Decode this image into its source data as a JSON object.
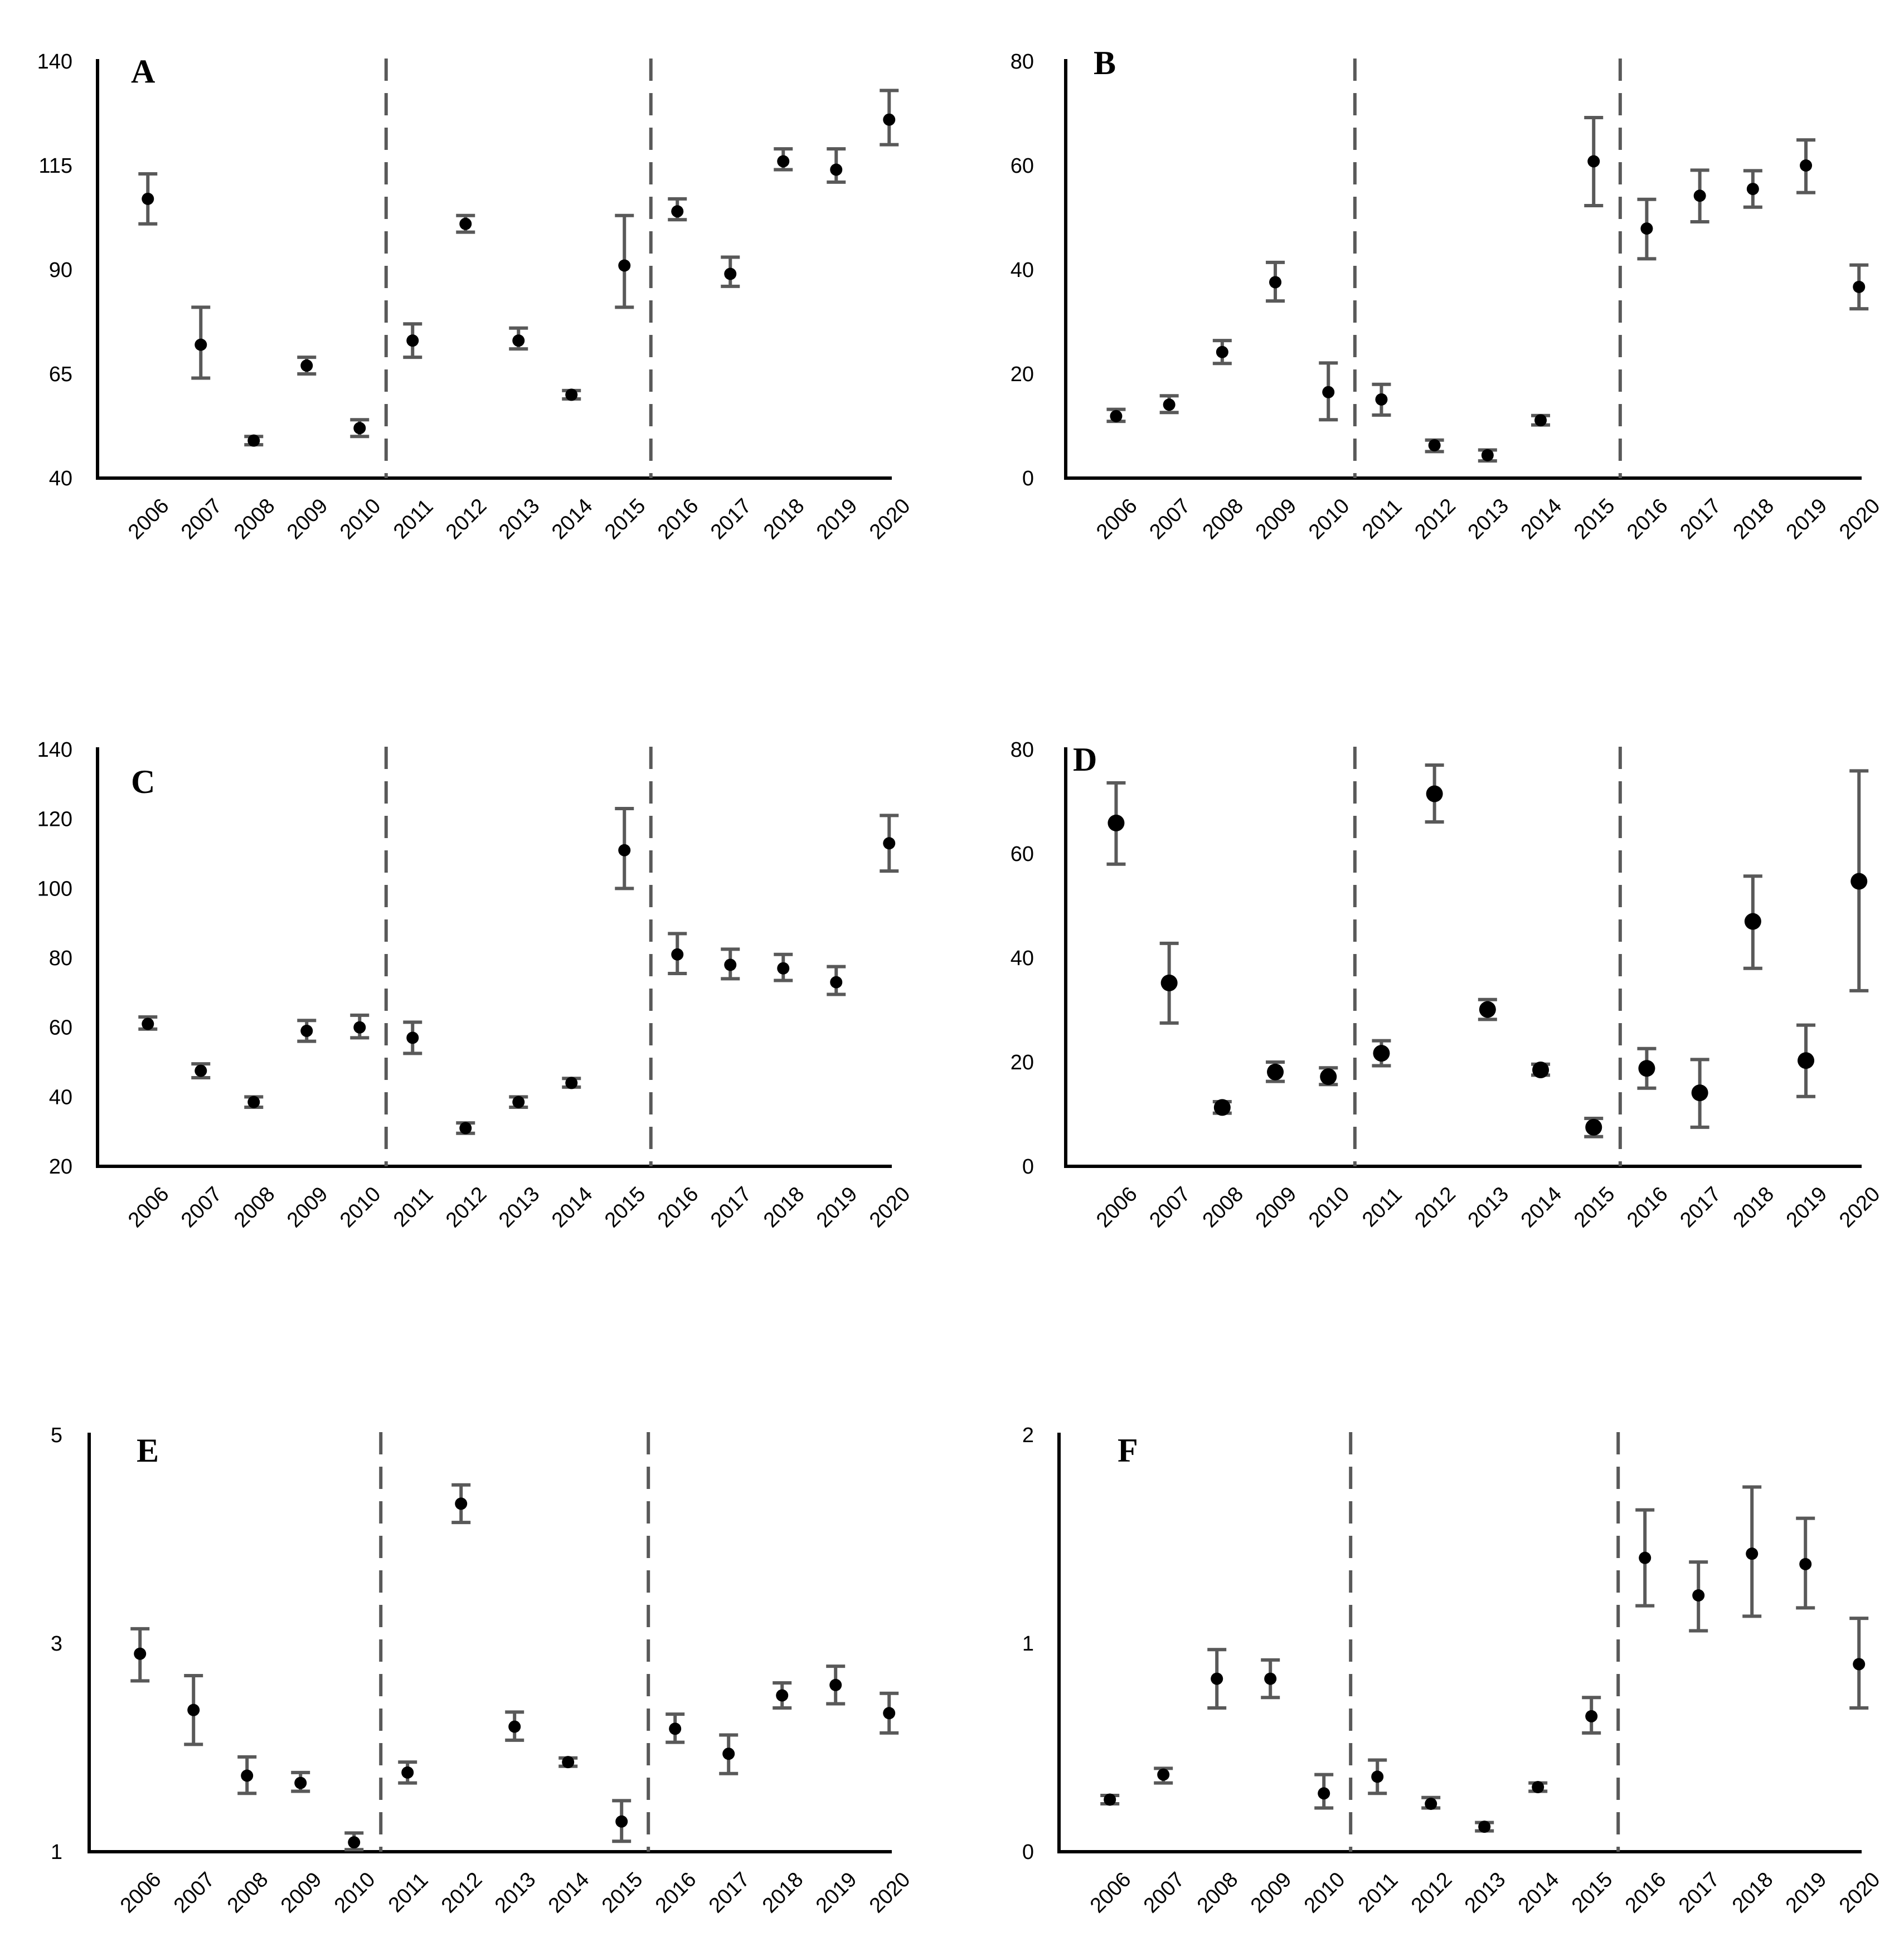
{
  "chart_data": [
    {
      "type": "scatter",
      "panel": "A",
      "x": [
        "2006",
        "2007",
        "2008",
        "2009",
        "2010",
        "2011",
        "2012",
        "2013",
        "2014",
        "2015",
        "2016",
        "2017",
        "2018",
        "2019",
        "2020"
      ],
      "y": [
        107,
        72,
        49,
        67,
        52,
        73,
        101,
        73,
        60,
        91,
        104,
        89,
        116,
        114,
        126
      ],
      "err_low": [
        101,
        64,
        48,
        65,
        50,
        69,
        99,
        71,
        59,
        81,
        102,
        86,
        114,
        111,
        120
      ],
      "err_high": [
        113,
        81,
        50,
        69,
        54,
        77,
        103,
        76,
        61,
        103,
        107,
        93,
        119,
        119,
        133
      ],
      "ylim": [
        40,
        140
      ],
      "yticks": [
        "40",
        "65",
        "90",
        "115",
        "140"
      ],
      "dividers_after": [
        "2010",
        "2015"
      ],
      "grid": false
    },
    {
      "type": "scatter",
      "panel": "B",
      "x": [
        "2006",
        "2007",
        "2008",
        "2009",
        "2010",
        "2011",
        "2012",
        "2013",
        "2014",
        "2015",
        "2016",
        "2017",
        "2018",
        "2019",
        "2020"
      ],
      "y": [
        11.9,
        14.1,
        24.2,
        37.6,
        16.5,
        15.1,
        6.3,
        4.4,
        11.1,
        60.8,
        47.9,
        54.2,
        55.5,
        60.0,
        36.7
      ],
      "err_low": [
        10.9,
        12.6,
        22.0,
        34.0,
        11.2,
        12.1,
        5.1,
        3.3,
        10.2,
        52.3,
        42.1,
        49.2,
        52.0,
        54.8,
        32.5
      ],
      "err_high": [
        13.2,
        15.8,
        26.4,
        41.4,
        22.1,
        18.0,
        7.3,
        5.4,
        12.0,
        69.2,
        53.5,
        59.1,
        59.0,
        64.9,
        40.9
      ],
      "ylim": [
        0,
        80
      ],
      "yticks": [
        "0",
        "20",
        "40",
        "60",
        "80"
      ],
      "dividers_after": [
        "2010",
        "2015"
      ],
      "grid": false
    },
    {
      "type": "scatter",
      "panel": "C",
      "x": [
        "2006",
        "2007",
        "2008",
        "2009",
        "2010",
        "2011",
        "2012",
        "2013",
        "2014",
        "2015",
        "2016",
        "2017",
        "2018",
        "2019",
        "2020"
      ],
      "y": [
        61,
        47.5,
        38.5,
        59,
        60,
        57,
        31,
        38.5,
        44,
        111,
        81,
        78,
        77,
        73,
        113
      ],
      "err_low": [
        59.5,
        45.5,
        37,
        56,
        57,
        52.5,
        29.5,
        37,
        42.8,
        100,
        75.5,
        74,
        73.5,
        69.5,
        105
      ],
      "err_high": [
        63,
        49.5,
        40,
        62,
        63.5,
        61.5,
        32.5,
        40,
        45.3,
        123,
        87,
        82.5,
        81,
        77.5,
        121
      ],
      "ylim": [
        20,
        140
      ],
      "yticks": [
        "20",
        "40",
        "60",
        "80",
        "100",
        "120",
        "140"
      ],
      "dividers_after": [
        "2010",
        "2015"
      ],
      "grid": false
    },
    {
      "type": "scatter",
      "panel": "D",
      "x": [
        "2006",
        "2007",
        "2008",
        "2009",
        "2010",
        "2011",
        "2012",
        "2013",
        "2014",
        "2015",
        "2016",
        "2017",
        "2018",
        "2019",
        "2020"
      ],
      "y": [
        65.9,
        35.2,
        11.3,
        18.1,
        17.2,
        21.7,
        71.5,
        30.1,
        18.5,
        7.5,
        18.8,
        14.1,
        47.0,
        20.3,
        54.7
      ],
      "err_low": [
        58.0,
        27.5,
        10.2,
        16.3,
        15.7,
        19.3,
        66.1,
        28.2,
        17.5,
        5.7,
        15.0,
        7.5,
        38.0,
        13.4,
        33.7
      ],
      "err_high": [
        73.6,
        42.8,
        12.4,
        20.0,
        18.9,
        24.1,
        77.0,
        32.0,
        19.6,
        9.2,
        22.6,
        20.5,
        55.7,
        27.1,
        75.9
      ],
      "ylim": [
        0,
        80
      ],
      "yticks": [
        "0",
        "20",
        "40",
        "60",
        "80"
      ],
      "dividers_after": [
        "2010",
        "2015"
      ],
      "grid": false
    },
    {
      "type": "scatter",
      "panel": "E",
      "x": [
        "2006",
        "2007",
        "2008",
        "2009",
        "2010",
        "2011",
        "2012",
        "2013",
        "2014",
        "2015",
        "2016",
        "2017",
        "2018",
        "2019",
        "2020"
      ],
      "y": [
        2.9,
        2.36,
        1.73,
        1.66,
        1.09,
        1.76,
        4.34,
        2.2,
        1.86,
        1.29,
        2.18,
        1.94,
        2.5,
        2.6,
        2.33
      ],
      "err_low": [
        2.64,
        2.03,
        1.56,
        1.58,
        1.02,
        1.66,
        4.16,
        2.07,
        1.82,
        1.1,
        2.05,
        1.75,
        2.38,
        2.42,
        2.14
      ],
      "err_high": [
        3.14,
        2.69,
        1.91,
        1.76,
        1.18,
        1.86,
        4.52,
        2.34,
        1.9,
        1.49,
        2.32,
        2.12,
        2.62,
        2.78,
        2.52
      ],
      "ylim": [
        1,
        5
      ],
      "yticks": [
        "1",
        "3",
        "5"
      ],
      "dividers_after": [
        "2010",
        "2015"
      ],
      "grid": false
    },
    {
      "type": "scatter",
      "panel": "F",
      "x": [
        "2006",
        "2007",
        "2008",
        "2009",
        "2010",
        "2011",
        "2012",
        "2013",
        "2014",
        "2015",
        "2016",
        "2017",
        "2018",
        "2019",
        "2020"
      ],
      "y": [
        0.25,
        0.37,
        0.83,
        0.83,
        0.28,
        0.36,
        0.23,
        0.12,
        0.31,
        0.65,
        1.41,
        1.23,
        1.43,
        1.38,
        0.9
      ],
      "err_low": [
        0.23,
        0.33,
        0.69,
        0.74,
        0.21,
        0.28,
        0.21,
        0.1,
        0.29,
        0.57,
        1.18,
        1.06,
        1.13,
        1.17,
        0.69
      ],
      "err_high": [
        0.27,
        0.4,
        0.97,
        0.92,
        0.37,
        0.44,
        0.26,
        0.14,
        0.33,
        0.74,
        1.64,
        1.39,
        1.75,
        1.6,
        1.12
      ],
      "ylim": [
        0,
        2
      ],
      "yticks": [
        "0",
        "1",
        "2"
      ],
      "dividers_after": [
        "2010",
        "2015"
      ],
      "grid": false
    }
  ]
}
